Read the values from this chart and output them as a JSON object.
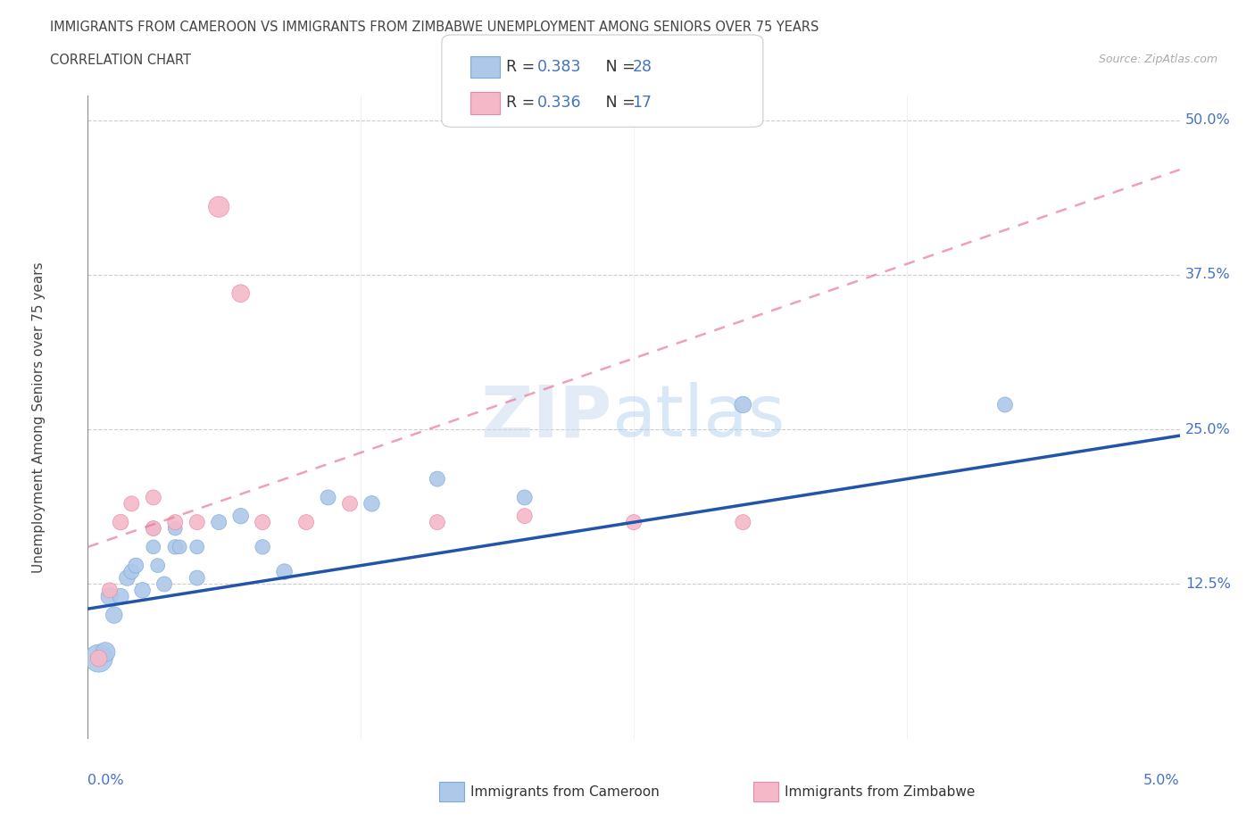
{
  "title_line1": "IMMIGRANTS FROM CAMEROON VS IMMIGRANTS FROM ZIMBABWE UNEMPLOYMENT AMONG SENIORS OVER 75 YEARS",
  "title_line2": "CORRELATION CHART",
  "source": "Source: ZipAtlas.com",
  "ylabel": "Unemployment Among Seniors over 75 years",
  "ytick_labels": [
    "12.5%",
    "25.0%",
    "37.5%",
    "50.0%"
  ],
  "ytick_values": [
    0.125,
    0.25,
    0.375,
    0.5
  ],
  "xlim": [
    0.0,
    0.05
  ],
  "ylim": [
    0.0,
    0.52
  ],
  "cameroon_color": "#adc8e8",
  "cameroon_edge_color": "#7aabda",
  "zimbabwe_color": "#f5b8c8",
  "zimbabwe_edge_color": "#e888a8",
  "cameroon_line_color": "#2255aa",
  "zimbabwe_line_color": "#e87898",
  "watermark_zip_color": "#ccddf0",
  "watermark_atlas_color": "#aaccee",
  "background_color": "#ffffff",
  "grid_color": "#cccccc",
  "legend_r_color": "#4472c4",
  "legend_n_color": "#4472c4",
  "axis_label_color": "#4472c4",
  "text_color": "#444444",
  "cameroon_x": [
    0.0005,
    0.0008,
    0.001,
    0.0012,
    0.0015,
    0.0018,
    0.002,
    0.0022,
    0.0025,
    0.003,
    0.003,
    0.0032,
    0.0035,
    0.004,
    0.004,
    0.0042,
    0.005,
    0.005,
    0.006,
    0.007,
    0.008,
    0.009,
    0.011,
    0.013,
    0.016,
    0.02,
    0.03,
    0.042
  ],
  "cameroon_y": [
    0.065,
    0.07,
    0.115,
    0.1,
    0.115,
    0.13,
    0.135,
    0.14,
    0.12,
    0.155,
    0.17,
    0.14,
    0.125,
    0.155,
    0.17,
    0.155,
    0.13,
    0.155,
    0.175,
    0.18,
    0.155,
    0.135,
    0.195,
    0.19,
    0.21,
    0.195,
    0.27,
    0.27
  ],
  "cameroon_size": [
    500,
    250,
    200,
    180,
    170,
    160,
    150,
    150,
    160,
    130,
    130,
    130,
    150,
    140,
    130,
    130,
    150,
    130,
    150,
    160,
    140,
    160,
    150,
    160,
    150,
    150,
    180,
    150
  ],
  "zimbabwe_x": [
    0.0005,
    0.001,
    0.0015,
    0.002,
    0.003,
    0.003,
    0.004,
    0.005,
    0.006,
    0.007,
    0.008,
    0.01,
    0.012,
    0.016,
    0.02,
    0.025,
    0.03
  ],
  "zimbabwe_y": [
    0.065,
    0.12,
    0.175,
    0.19,
    0.17,
    0.195,
    0.175,
    0.175,
    0.43,
    0.36,
    0.175,
    0.175,
    0.19,
    0.175,
    0.18,
    0.175,
    0.175
  ],
  "zimbabwe_size": [
    180,
    150,
    160,
    150,
    150,
    150,
    150,
    150,
    280,
    200,
    150,
    150,
    150,
    150,
    150,
    150,
    150
  ],
  "cameroon_trend_x": [
    0.0,
    0.05
  ],
  "cameroon_trend_y": [
    0.105,
    0.245
  ],
  "zimbabwe_trend_x": [
    0.0,
    0.05
  ],
  "zimbabwe_trend_y": [
    0.155,
    0.46
  ],
  "xlim_ticks": [
    0.0,
    0.0125,
    0.025,
    0.0375,
    0.05
  ]
}
